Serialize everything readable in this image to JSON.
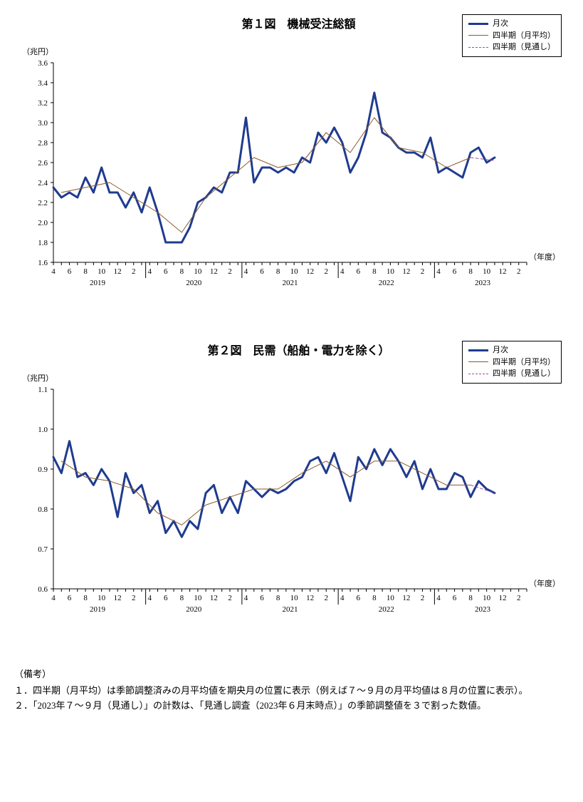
{
  "chart1": {
    "type": "line",
    "title": "第１図　機械受注総額",
    "y_unit_label": "（兆円）",
    "x_unit_label": "（年度）",
    "ylim": [
      1.6,
      3.6
    ],
    "ytick_step": 0.2,
    "plot_bg": "#ffffff",
    "axis_color": "#000000",
    "font_size_axis": 11,
    "font_size_title": 16,
    "x_monthly_labels": [
      "4",
      "6",
      "8",
      "10",
      "12",
      "2",
      "4",
      "6",
      "8",
      "10",
      "12",
      "2",
      "4",
      "6",
      "8",
      "10",
      "12",
      "2",
      "4",
      "6",
      "8",
      "10",
      "12",
      "2",
      "4",
      "6",
      "8",
      "10",
      "12",
      "2"
    ],
    "x_year_labels": [
      "2019",
      "2020",
      "2021",
      "2022",
      "2023"
    ],
    "legend": {
      "items": [
        {
          "label": "月次",
          "color": "#1f3b8f",
          "dash": "none",
          "width": 3
        },
        {
          "label": "四半期（月平均）",
          "color": "#8b5a2b",
          "dash": "none",
          "width": 1
        },
        {
          "label": "四半期（見通し）",
          "color": "#9b4f9b",
          "dash": "4,3",
          "width": 1
        }
      ],
      "border_color": "#000000",
      "bg_color": "#ffffff"
    },
    "series": {
      "monthly": {
        "color": "#1f3b8f",
        "width": 3,
        "dash": "none",
        "values": [
          2.35,
          2.25,
          2.3,
          2.25,
          2.45,
          2.3,
          2.55,
          2.3,
          2.3,
          2.15,
          2.3,
          2.1,
          2.35,
          2.1,
          1.8,
          1.8,
          1.8,
          1.95,
          2.2,
          2.25,
          2.35,
          2.3,
          2.5,
          2.5,
          3.05,
          2.4,
          2.55,
          2.55,
          2.5,
          2.55,
          2.5,
          2.65,
          2.6,
          2.9,
          2.8,
          2.95,
          2.8,
          2.5,
          2.65,
          2.9,
          3.3,
          2.9,
          2.85,
          2.75,
          2.7,
          2.7,
          2.65,
          2.85,
          2.5,
          2.55,
          2.5,
          2.45,
          2.7,
          2.75,
          2.6,
          2.65
        ]
      },
      "quarterly_avg": {
        "color": "#8b5a2b",
        "width": 1,
        "dash": "none",
        "points": [
          {
            "i": 1,
            "v": 2.3
          },
          {
            "i": 4,
            "v": 2.35
          },
          {
            "i": 7,
            "v": 2.4
          },
          {
            "i": 10,
            "v": 2.25
          },
          {
            "i": 13,
            "v": 2.1
          },
          {
            "i": 16,
            "v": 1.9
          },
          {
            "i": 19,
            "v": 2.25
          },
          {
            "i": 22,
            "v": 2.45
          },
          {
            "i": 25,
            "v": 2.65
          },
          {
            "i": 28,
            "v": 2.55
          },
          {
            "i": 31,
            "v": 2.6
          },
          {
            "i": 34,
            "v": 2.9
          },
          {
            "i": 37,
            "v": 2.7
          },
          {
            "i": 40,
            "v": 3.05
          },
          {
            "i": 43,
            "v": 2.75
          },
          {
            "i": 46,
            "v": 2.7
          },
          {
            "i": 49,
            "v": 2.55
          },
          {
            "i": 52,
            "v": 2.65
          }
        ]
      },
      "quarterly_forecast": {
        "color": "#9b4f9b",
        "width": 1,
        "dash": "4,3",
        "points": [
          {
            "i": 52,
            "v": 2.65
          },
          {
            "i": 55,
            "v": 2.62
          }
        ]
      }
    }
  },
  "chart2": {
    "type": "line",
    "title": "第２図　民需（船舶・電力を除く）",
    "y_unit_label": "（兆円）",
    "x_unit_label": "（年度）",
    "ylim": [
      0.6,
      1.1
    ],
    "ytick_step": 0.1,
    "plot_bg": "#ffffff",
    "axis_color": "#000000",
    "font_size_axis": 11,
    "font_size_title": 16,
    "x_monthly_labels": [
      "4",
      "6",
      "8",
      "10",
      "12",
      "2",
      "4",
      "6",
      "8",
      "10",
      "12",
      "2",
      "4",
      "6",
      "8",
      "10",
      "12",
      "2",
      "4",
      "6",
      "8",
      "10",
      "12",
      "2",
      "4",
      "6",
      "8",
      "10",
      "12",
      "2"
    ],
    "x_year_labels": [
      "2019",
      "2020",
      "2021",
      "2022",
      "2023"
    ],
    "legend": {
      "items": [
        {
          "label": "月次",
          "color": "#1f3b8f",
          "dash": "none",
          "width": 3
        },
        {
          "label": "四半期（月平均）",
          "color": "#8b5a2b",
          "dash": "none",
          "width": 1
        },
        {
          "label": "四半期（見通し）",
          "color": "#9b4f9b",
          "dash": "4,3",
          "width": 1
        }
      ],
      "border_color": "#000000",
      "bg_color": "#ffffff"
    },
    "series": {
      "monthly": {
        "color": "#1f3b8f",
        "width": 3,
        "dash": "none",
        "values": [
          0.93,
          0.89,
          0.97,
          0.88,
          0.89,
          0.86,
          0.9,
          0.87,
          0.78,
          0.89,
          0.84,
          0.86,
          0.79,
          0.82,
          0.74,
          0.77,
          0.73,
          0.77,
          0.75,
          0.84,
          0.86,
          0.79,
          0.83,
          0.79,
          0.87,
          0.85,
          0.83,
          0.85,
          0.84,
          0.85,
          0.87,
          0.88,
          0.92,
          0.93,
          0.89,
          0.94,
          0.88,
          0.82,
          0.93,
          0.9,
          0.95,
          0.91,
          0.95,
          0.92,
          0.88,
          0.92,
          0.85,
          0.9,
          0.85,
          0.85,
          0.89,
          0.88,
          0.83,
          0.87,
          0.85,
          0.84
        ]
      },
      "quarterly_avg": {
        "color": "#8b5a2b",
        "width": 1,
        "dash": "none",
        "points": [
          {
            "i": 1,
            "v": 0.92
          },
          {
            "i": 4,
            "v": 0.88
          },
          {
            "i": 7,
            "v": 0.87
          },
          {
            "i": 10,
            "v": 0.85
          },
          {
            "i": 13,
            "v": 0.79
          },
          {
            "i": 16,
            "v": 0.76
          },
          {
            "i": 19,
            "v": 0.81
          },
          {
            "i": 22,
            "v": 0.83
          },
          {
            "i": 25,
            "v": 0.85
          },
          {
            "i": 28,
            "v": 0.85
          },
          {
            "i": 31,
            "v": 0.89
          },
          {
            "i": 34,
            "v": 0.92
          },
          {
            "i": 37,
            "v": 0.88
          },
          {
            "i": 40,
            "v": 0.92
          },
          {
            "i": 43,
            "v": 0.92
          },
          {
            "i": 46,
            "v": 0.89
          },
          {
            "i": 49,
            "v": 0.86
          },
          {
            "i": 52,
            "v": 0.86
          }
        ]
      },
      "quarterly_forecast": {
        "color": "#9b4f9b",
        "width": 1,
        "dash": "4,3",
        "points": [
          {
            "i": 52,
            "v": 0.86
          },
          {
            "i": 55,
            "v": 0.84
          }
        ]
      }
    }
  },
  "notes": {
    "heading": "（備考）",
    "lines": [
      "１．四半期（月平均）は季節調整済みの月平均値を期央月の位置に表示（例えば７～９月の月平均値は８月の位置に表示）。",
      "２．「2023年７～９月（見通し）」の計数は、「見通し調査（2023年６月末時点）」の季節調整値を３で割った数値。"
    ]
  }
}
